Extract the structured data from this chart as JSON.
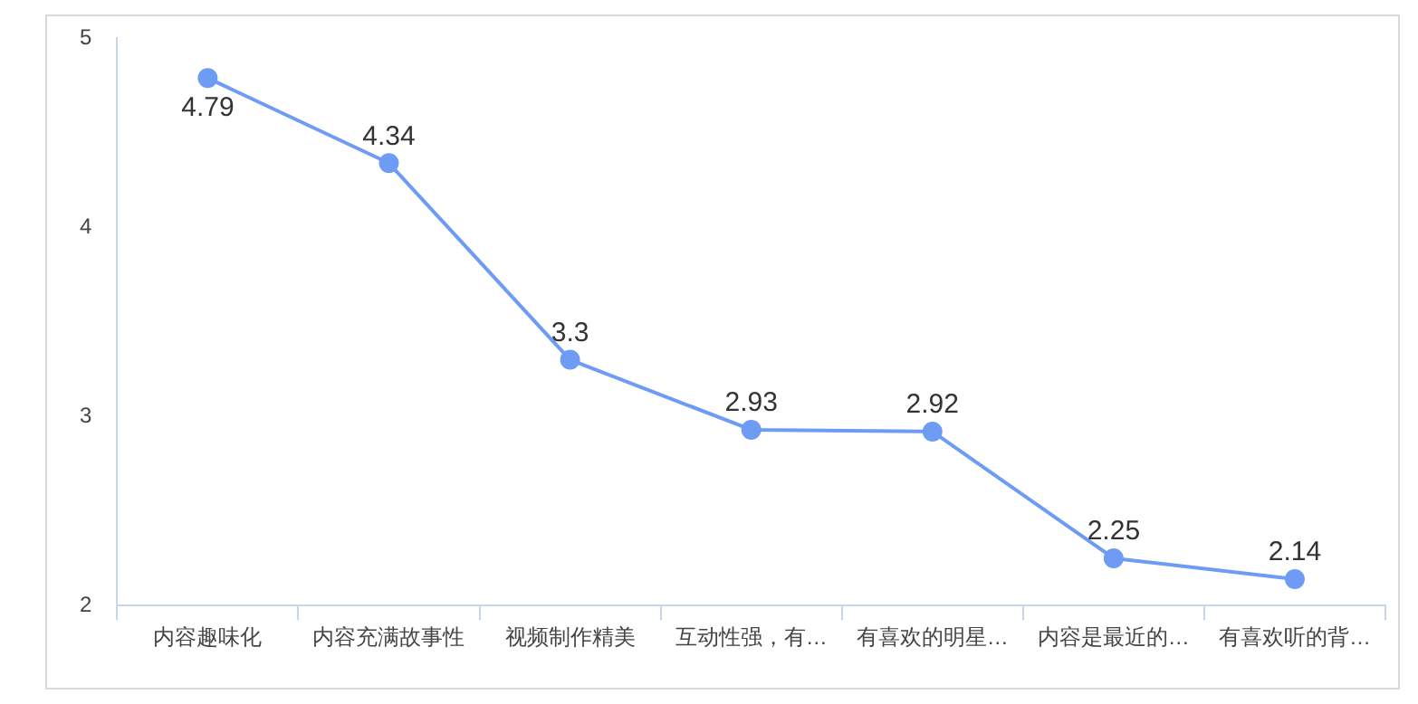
{
  "chart_data": {
    "type": "line",
    "categories": [
      "内容趣味化",
      "内容充满故事性",
      "视频制作精美",
      "互动性强，有…",
      "有喜欢的明星…",
      "内容是最近的…",
      "有喜欢听的背…"
    ],
    "series": [
      {
        "color": "#6e9cf5",
        "values": [
          4.79,
          4.34,
          3.3,
          2.93,
          2.92,
          2.25,
          2.14
        ]
      }
    ],
    "ylim": [
      2,
      5
    ],
    "yticks": [
      2,
      3,
      4,
      5
    ],
    "grid": false,
    "legend": false,
    "marker": "circle",
    "line_style": "solid",
    "data_labels": true
  }
}
